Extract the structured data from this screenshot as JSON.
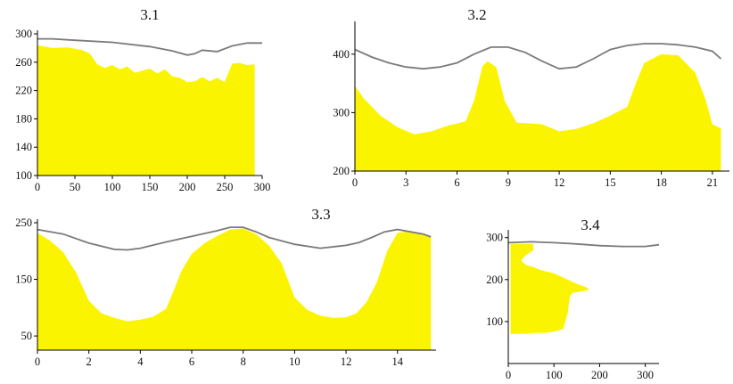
{
  "colors": {
    "fill": "#fbf400",
    "surface": "#7a7a7a",
    "axis": "#000000",
    "background": "#ffffff"
  },
  "chart_data": [
    {
      "type": "area",
      "title": "3.1",
      "xlim": [
        0,
        300
      ],
      "ylim": [
        100,
        300
      ],
      "x_ticks": [
        "0",
        "50",
        "100",
        "150",
        "200",
        "250",
        "300"
      ],
      "y_ticks": [
        "100",
        "140",
        "180",
        "220",
        "260",
        "300"
      ],
      "series": [
        {
          "role": "fill",
          "x": [
            0,
            20,
            40,
            60,
            70,
            80,
            90,
            100,
            110,
            120,
            130,
            150,
            160,
            170,
            180,
            190,
            200,
            210,
            220,
            230,
            240,
            250,
            260,
            270,
            280,
            290
          ],
          "y": [
            284,
            280,
            281,
            277,
            272,
            257,
            252,
            256,
            250,
            254,
            245,
            251,
            244,
            250,
            240,
            238,
            232,
            233,
            239,
            233,
            238,
            232,
            258,
            259,
            256,
            257
          ]
        },
        {
          "role": "surface",
          "x": [
            0,
            20,
            50,
            100,
            150,
            180,
            200,
            210,
            220,
            240,
            260,
            280,
            300
          ],
          "y": [
            293,
            293,
            291,
            288,
            282,
            276,
            270,
            272,
            277,
            275,
            283,
            287,
            287
          ]
        }
      ]
    },
    {
      "type": "area",
      "title": "3.2",
      "xlim": [
        0,
        22
      ],
      "ylim": [
        200,
        450
      ],
      "x_ticks": [
        "0",
        "3",
        "6",
        "9",
        "12",
        "15",
        "18",
        "21"
      ],
      "y_ticks": [
        "200",
        "300",
        "400"
      ],
      "series": [
        {
          "role": "fill",
          "x": [
            0,
            0.5,
            1.5,
            2.5,
            3.5,
            4.5,
            5.5,
            6.5,
            7,
            7.5,
            7.8,
            8.3,
            8.8,
            9.5,
            11,
            12,
            13,
            14,
            15,
            16,
            16.5,
            17,
            18,
            19,
            20,
            20.6,
            21,
            21.5,
            21.5
          ],
          "y": [
            346,
            325,
            295,
            275,
            263,
            268,
            278,
            285,
            320,
            380,
            388,
            378,
            320,
            283,
            280,
            268,
            272,
            282,
            295,
            310,
            350,
            385,
            400,
            398,
            368,
            322,
            280,
            273,
            273
          ]
        },
        {
          "role": "surface",
          "x": [
            0,
            1,
            2,
            3,
            4,
            5,
            6,
            7,
            8,
            9,
            10,
            11,
            12,
            13,
            14,
            15,
            16,
            17,
            18,
            19,
            20,
            21,
            21.5
          ],
          "y": [
            408,
            395,
            385,
            378,
            375,
            378,
            385,
            400,
            412,
            412,
            403,
            388,
            375,
            378,
            392,
            408,
            415,
            418,
            418,
            416,
            412,
            405,
            392
          ]
        }
      ]
    },
    {
      "type": "area",
      "title": "3.3",
      "xlim": [
        0,
        15.5
      ],
      "ylim": [
        25,
        250
      ],
      "x_ticks": [
        "0",
        "2",
        "4",
        "6",
        "8",
        "10",
        "12",
        "14"
      ],
      "y_ticks": [
        "50",
        "150",
        "250"
      ],
      "series": [
        {
          "role": "fill",
          "x": [
            0,
            0.5,
            1,
            1.5,
            2,
            2.5,
            3,
            3.5,
            4,
            4.5,
            5,
            5.3,
            5.6,
            6,
            6.5,
            7,
            7.5,
            8,
            8.5,
            9,
            9.5,
            10,
            10.5,
            11,
            11.5,
            12,
            12.4,
            12.8,
            13.2,
            13.6,
            14,
            14.5,
            15,
            15.3,
            15.3
          ],
          "y": [
            232,
            218,
            198,
            162,
            112,
            90,
            82,
            76,
            79,
            84,
            98,
            130,
            165,
            195,
            214,
            227,
            238,
            240,
            230,
            210,
            178,
            118,
            96,
            86,
            82,
            83,
            90,
            110,
            145,
            200,
            232,
            235,
            230,
            225,
            225
          ]
        },
        {
          "role": "surface",
          "x": [
            0,
            1,
            2,
            3,
            3.5,
            4,
            5,
            6,
            7,
            7.5,
            8,
            8.5,
            9,
            10,
            11,
            12,
            12.5,
            13,
            13.5,
            14,
            15,
            15.3
          ],
          "y": [
            238,
            230,
            214,
            203,
            202,
            205,
            216,
            226,
            236,
            242,
            242,
            234,
            224,
            212,
            205,
            210,
            215,
            224,
            234,
            238,
            230,
            225
          ]
        }
      ]
    },
    {
      "type": "area",
      "title": "3.4",
      "xlim": [
        0,
        330
      ],
      "ylim": [
        0,
        310
      ],
      "x_ticks": [
        "0",
        "100",
        "200",
        "300"
      ],
      "y_ticks": [
        "100",
        "200",
        "300"
      ],
      "series": [
        {
          "role": "fill",
          "x": [
            5,
            55,
            55,
            38,
            28,
            40,
            55,
            65,
            80,
            100,
            120,
            150,
            175,
            175,
            160,
            140,
            135,
            130,
            125,
            120,
            100,
            80,
            60,
            40,
            20,
            5
          ],
          "y": [
            285,
            285,
            270,
            258,
            245,
            234,
            230,
            225,
            220,
            215,
            205,
            190,
            180,
            175,
            172,
            168,
            160,
            120,
            100,
            82,
            76,
            73,
            73,
            71,
            71,
            70
          ]
        },
        {
          "role": "surface",
          "x": [
            0,
            50,
            100,
            150,
            200,
            250,
            300,
            330
          ],
          "y": [
            288,
            290,
            288,
            285,
            281,
            279,
            279,
            283
          ]
        }
      ]
    }
  ]
}
